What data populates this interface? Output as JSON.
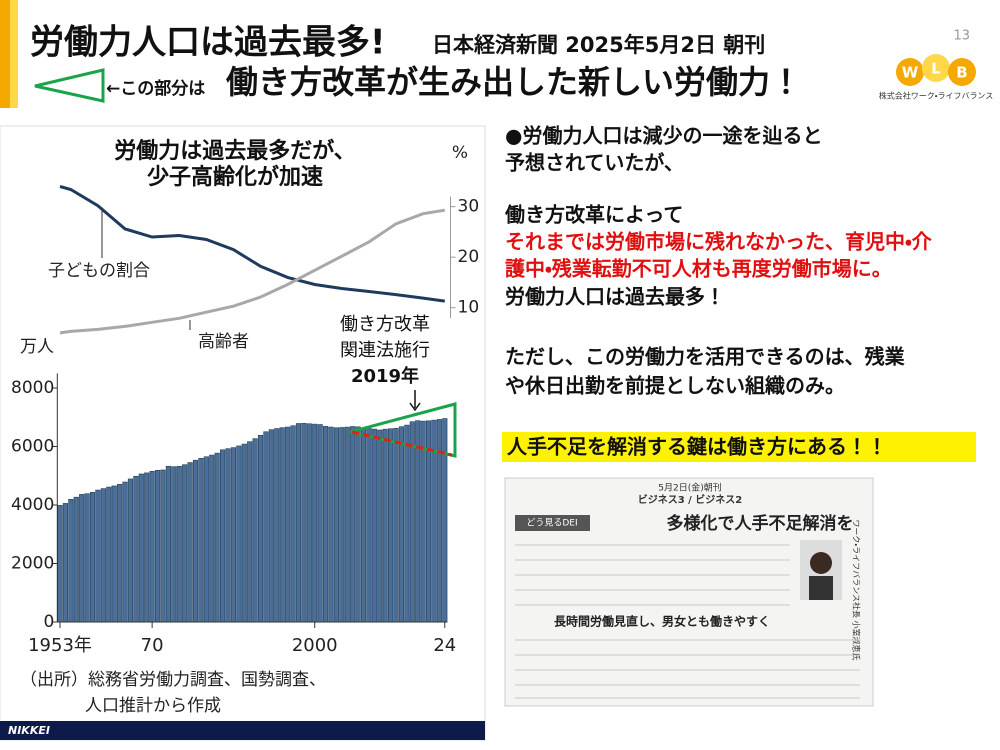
{
  "header": {
    "title": "労働力人口は過去最多!",
    "source": "日本経済新聞 2025年5月2日 朝刊",
    "pointer": "←この部分は",
    "subtitle": "働き方改革が生み出した新しい労働力！",
    "page_number": "13",
    "logo_letters": [
      "W",
      "L",
      "B"
    ],
    "logo_company": "株式会社ワーク・ライフバランス"
  },
  "chart_data": [
    {
      "type": "line",
      "title": [
        "労働力は過去最多だが、",
        "少子高齢化が加速"
      ],
      "y_label": "%",
      "x": [
        1953,
        1955,
        1960,
        1965,
        1970,
        1975,
        1980,
        1985,
        1990,
        1995,
        2000,
        2005,
        2010,
        2015,
        2020,
        2024
      ],
      "xlim": [
        1952.5,
        2024.5
      ],
      "ylim": [
        4,
        43
      ],
      "yticks": [
        10,
        20,
        30
      ],
      "series": [
        {
          "name": "子どもの割合",
          "color": "#1f3a5f",
          "values": [
            34.0,
            33.4,
            30.2,
            25.6,
            24.0,
            24.3,
            23.5,
            21.5,
            18.2,
            16.0,
            14.6,
            13.8,
            13.2,
            12.6,
            11.9,
            11.3
          ]
        },
        {
          "name": "高齢者",
          "color": "#a8a8a8",
          "values": [
            5.0,
            5.3,
            5.7,
            6.3,
            7.1,
            7.9,
            9.1,
            10.3,
            12.1,
            14.6,
            17.4,
            20.2,
            23.0,
            26.6,
            28.6,
            29.3
          ]
        }
      ]
    },
    {
      "type": "bar",
      "y_label": "万人",
      "series_name": "労働力人口",
      "color": "#4a6e96",
      "annotation": [
        "働き方改革",
        "関連法施行",
        "2019年"
      ],
      "x": [
        1953,
        1954,
        1955,
        1956,
        1957,
        1958,
        1959,
        1960,
        1961,
        1962,
        1963,
        1964,
        1965,
        1966,
        1967,
        1968,
        1969,
        1970,
        1971,
        1972,
        1973,
        1974,
        1975,
        1976,
        1977,
        1978,
        1979,
        1980,
        1981,
        1982,
        1983,
        1984,
        1985,
        1986,
        1987,
        1988,
        1989,
        1990,
        1991,
        1992,
        1993,
        1994,
        1995,
        1996,
        1997,
        1998,
        1999,
        2000,
        2001,
        2002,
        2003,
        2004,
        2005,
        2006,
        2007,
        2008,
        2009,
        2010,
        2011,
        2012,
        2013,
        2014,
        2015,
        2016,
        2017,
        2018,
        2019,
        2020,
        2021,
        2022,
        2023,
        2024
      ],
      "values": [
        3989,
        4055,
        4194,
        4268,
        4363,
        4387,
        4433,
        4511,
        4562,
        4614,
        4652,
        4710,
        4787,
        4891,
        4983,
        5061,
        5098,
        5153,
        5186,
        5199,
        5326,
        5310,
        5323,
        5378,
        5452,
        5532,
        5596,
        5650,
        5707,
        5774,
        5889,
        5927,
        5963,
        6020,
        6084,
        6166,
        6270,
        6384,
        6505,
        6578,
        6615,
        6645,
        6666,
        6711,
        6787,
        6793,
        6779,
        6766,
        6752,
        6689,
        6666,
        6642,
        6651,
        6664,
        6684,
        6674,
        6617,
        6632,
        6596,
        6565,
        6593,
        6609,
        6625,
        6678,
        6732,
        6849,
        6886,
        6868,
        6880,
        6902,
        6925,
        6957
      ],
      "xlim": [
        1952.5,
        2024.5
      ],
      "ylim": [
        0,
        8500
      ],
      "yticks": [
        0,
        2000,
        4000,
        6000,
        8000
      ],
      "xticks": [
        {
          "value": 1953,
          "label": "1953年"
        },
        {
          "value": 1970,
          "label": "70"
        },
        {
          "value": 2000,
          "label": "2000"
        },
        {
          "value": 2024,
          "label": "24"
        }
      ]
    }
  ],
  "source_note": [
    "（出所）総務省労働力調査、国勢調査、",
    "人口推計から作成"
  ],
  "publisher": "NIKKEI",
  "body": {
    "lines": [
      "●労働力人口は減少の一途を辿ると",
      "予想されていたが、",
      "働き方改革によって",
      "それまでは労働市場に残れなかった、育児中・介",
      "護中・残業転勤不可人材も再度労働市場に。",
      "労働力人口は過去最多！",
      "ただし、この労働力を活用できるのは、残業",
      "や休日出勤を前提としない組織のみ。"
    ],
    "highlight": "人手不足を解消する鍵は働き方にある！！"
  },
  "clipping": {
    "date": "5月2日(金)朝刊",
    "section": "ビジネス3 / ビジネス2",
    "series": "どう見るDEI",
    "headline": "多様化で人手不足解消を",
    "subhead": "長時間労働見直し、男女とも働きやすく",
    "byline": "ワーク・ライフバランス社長 小室淑恵氏"
  }
}
